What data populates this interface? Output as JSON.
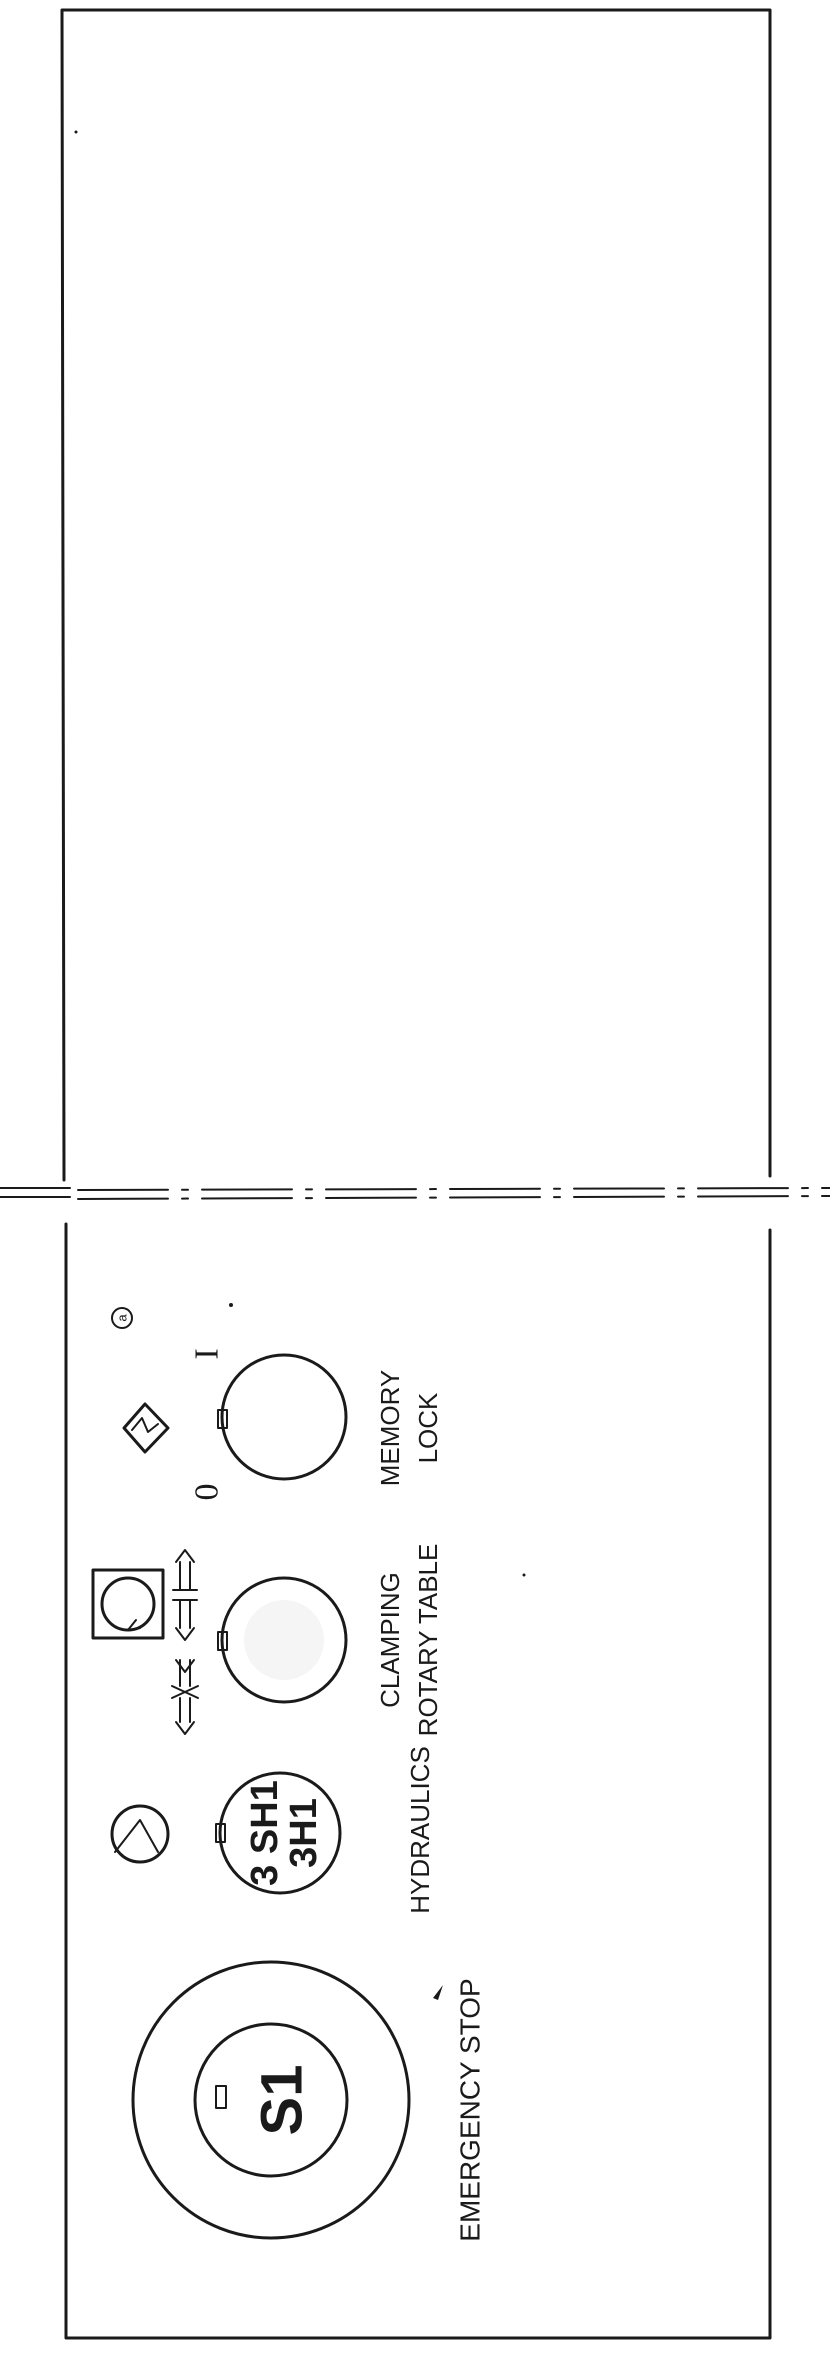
{
  "panel": {
    "emergency_stop": {
      "button_id": "S1",
      "label": "EMERGENCY STOP"
    },
    "hydraulics": {
      "button_id_line1": "3 SH1",
      "button_id_line2": "3H1",
      "label": "HYDRAULICS"
    },
    "clamping_rotary_table": {
      "label_line1": "CLAMPING",
      "label_line2": "ROTARY TABLE"
    },
    "memory_lock": {
      "label_line1": "MEMORY",
      "label_line2": "LOCK",
      "position_off": "0",
      "position_on": "I",
      "note_marker": "a"
    }
  }
}
